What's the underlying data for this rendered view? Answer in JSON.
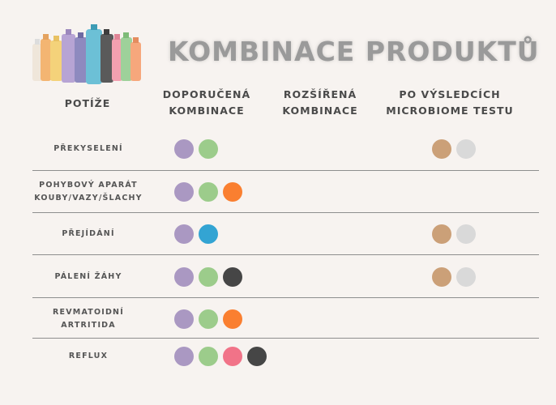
{
  "title": "KOMBINACE PRODUKTŮ",
  "headers": {
    "issue": "POTÍŽE",
    "recommended": "DOPORUČENÁ KOMBINACE",
    "extended": "ROZŠÍŘENÁ KOMBINACE",
    "test": "PO VÝSLEDCÍCH MICROBIOME TESTU"
  },
  "colors": {
    "purple": "#aa98c2",
    "green": "#9ccc8b",
    "orange": "#fa7f30",
    "dark": "#464646",
    "blue": "#33a4d3",
    "pink": "#f17388",
    "tan": "#cba078",
    "light_gray": "#d9d9d9"
  },
  "rows": [
    {
      "issue_lines": [
        "PŘEKYSELENÍ"
      ],
      "recommended": [
        "purple",
        "green"
      ],
      "test": [
        "tan",
        "light_gray"
      ]
    },
    {
      "issue_lines": [
        "POHYBOVÝ APARÁT",
        "KOUBY/VAZY/ŠLACHY"
      ],
      "recommended": [
        "purple",
        "green",
        "orange"
      ],
      "test": []
    },
    {
      "issue_lines": [
        "PŘEJÍDÁNÍ"
      ],
      "recommended": [
        "purple",
        "blue"
      ],
      "test": [
        "tan",
        "light_gray"
      ]
    },
    {
      "issue_lines": [
        "PÁLENÍ ŽÁHY"
      ],
      "recommended": [
        "purple",
        "green",
        "dark"
      ],
      "test": [
        "tan",
        "light_gray"
      ]
    },
    {
      "issue_lines": [
        "REVMATOIDNÍ",
        "ARTRITIDA"
      ],
      "recommended": [
        "purple",
        "green",
        "orange"
      ],
      "test": []
    },
    {
      "issue_lines": [
        "REFLUX"
      ],
      "recommended": [
        "purple",
        "green",
        "pink",
        "dark"
      ],
      "test": []
    }
  ]
}
